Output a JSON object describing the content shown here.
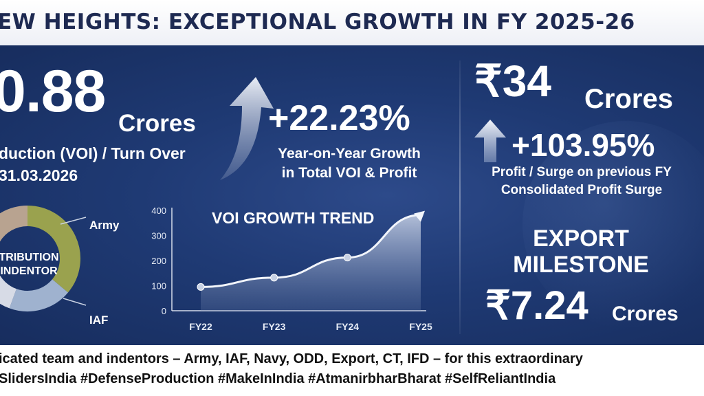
{
  "banner": {
    "title": "EW HEIGHTS: EXCEPTIONAL GROWTH IN FY 2025-26"
  },
  "voi": {
    "amount": "0.88",
    "unit": "Crores",
    "label": "duction (VOI) / Turn Over",
    "date": "31.03.2026"
  },
  "growth": {
    "percent": "+22.23%",
    "line1": "Year-on-Year Growth",
    "line2": "in Total VOI & Profit"
  },
  "profit": {
    "amount": "₹34",
    "unit": "Crores",
    "percent": "+103.95%",
    "line1": "Profit / Surge on previous FY",
    "line2": "Consolidated Profit Surge"
  },
  "export": {
    "line1": "EXPORT",
    "line2": "MILESTONE",
    "amount": "₹7.24",
    "unit": "Crores"
  },
  "distribution": {
    "center_line1": "TRIBUTION",
    "center_line2": "INDENTOR",
    "labels": [
      "Army",
      "IAF"
    ],
    "colors": [
      "#9aa24e",
      "#9fb2cf",
      "#b8a390",
      "#d7dbe6"
    ]
  },
  "chart_data": {
    "type": "area",
    "title": "VOI GROWTH TREND",
    "categories": [
      "FY22",
      "FY23",
      "FY24",
      "FY25"
    ],
    "values": [
      95,
      132,
      212,
      382
    ],
    "yticks": [
      0,
      100,
      200,
      300,
      400
    ],
    "ylim": [
      0,
      400
    ],
    "xlabel": "",
    "ylabel": "",
    "grid": false
  },
  "footer": {
    "line1": "icated team and indentors – Army, IAF, Navy, ODD, Export, CT, IFD – for this extraordinary",
    "line2": "SlidersIndia #DefenseProduction #MakeInIndia #AtmanirbharBharat #SelfReliantIndia"
  }
}
